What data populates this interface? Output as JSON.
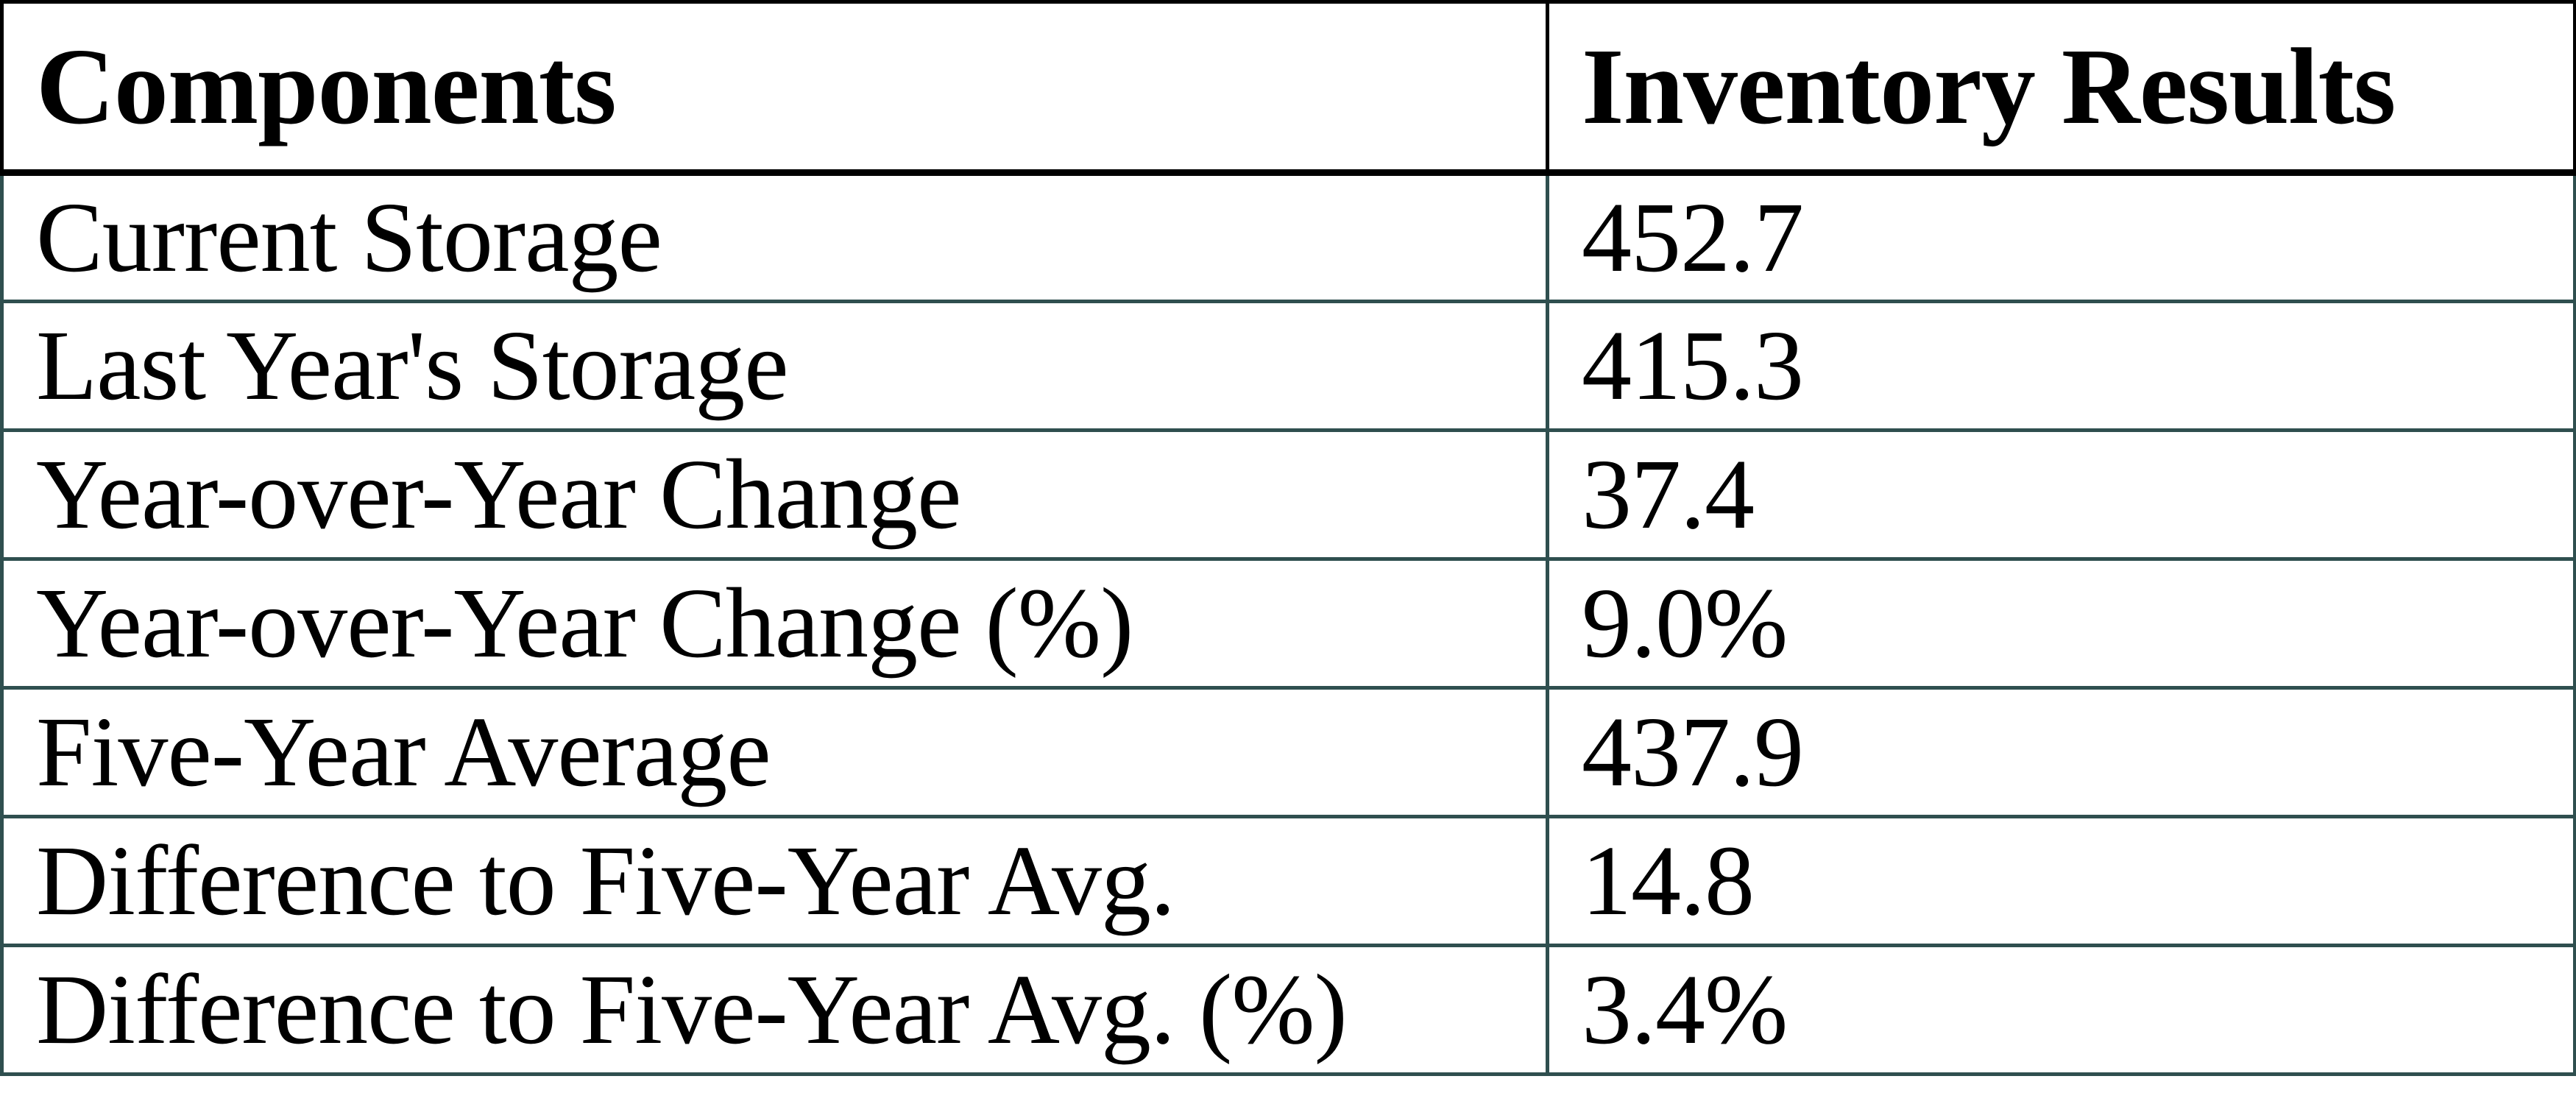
{
  "table": {
    "columns": [
      {
        "label": "Components"
      },
      {
        "label": "Inventory Results"
      }
    ],
    "rows": [
      {
        "component": "Current Storage",
        "result": "452.7"
      },
      {
        "component": "Last Year's Storage",
        "result": "415.3"
      },
      {
        "component": "Year-over-Year Change",
        "result": "37.4"
      },
      {
        "component": "Year-over-Year Change (%)",
        "result": "9.0%"
      },
      {
        "component": "Five-Year Average",
        "result": "437.9"
      },
      {
        "component": "Difference to Five-Year Avg.",
        "result": "14.8"
      },
      {
        "component": "Difference to Five-Year Avg. (%)",
        "result": "3.4%"
      }
    ]
  },
  "chart_data": {
    "type": "table",
    "title": "",
    "columns": [
      "Components",
      "Inventory Results"
    ],
    "rows": [
      [
        "Current Storage",
        "452.7"
      ],
      [
        "Last Year's Storage",
        "415.3"
      ],
      [
        "Year-over-Year Change",
        "37.4"
      ],
      [
        "Year-over-Year Change (%)",
        "9.0%"
      ],
      [
        "Five-Year Average",
        "437.9"
      ],
      [
        "Difference to Five-Year Avg.",
        "14.8"
      ],
      [
        "Difference to Five-Year Avg. (%)",
        "3.4%"
      ]
    ]
  },
  "colors": {
    "header_border": "#000000",
    "body_border": "#2F4F4F",
    "text": "#000000",
    "background": "#FFFFFF"
  }
}
